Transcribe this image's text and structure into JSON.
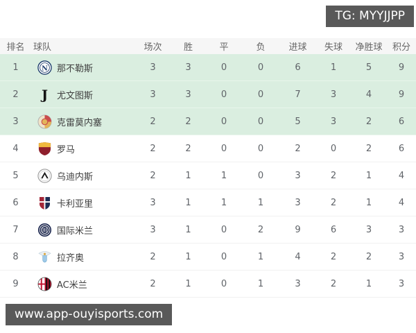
{
  "badges": {
    "tg": "TG: MYYJJPP",
    "watermark": "www.app-ouyisports.com"
  },
  "table": {
    "columns": [
      "排名",
      "球队",
      "场次",
      "胜",
      "平",
      "负",
      "进球",
      "失球",
      "净胜球",
      "积分"
    ],
    "rows": [
      {
        "rank": "1",
        "team": "那不勒斯",
        "logo": "napoli-logo",
        "played": "3",
        "win": "3",
        "draw": "0",
        "loss": "0",
        "gf": "6",
        "ga": "1",
        "gd": "5",
        "pts": "9",
        "highlight": true
      },
      {
        "rank": "2",
        "team": "尤文图斯",
        "logo": "juventus-logo",
        "played": "3",
        "win": "3",
        "draw": "0",
        "loss": "0",
        "gf": "7",
        "ga": "3",
        "gd": "4",
        "pts": "9",
        "highlight": true
      },
      {
        "rank": "3",
        "team": "克雷莫内塞",
        "logo": "cremonese-logo",
        "played": "2",
        "win": "2",
        "draw": "0",
        "loss": "0",
        "gf": "5",
        "ga": "3",
        "gd": "2",
        "pts": "6",
        "highlight": true
      },
      {
        "rank": "4",
        "team": "罗马",
        "logo": "roma-logo",
        "played": "2",
        "win": "2",
        "draw": "0",
        "loss": "0",
        "gf": "2",
        "ga": "0",
        "gd": "2",
        "pts": "6",
        "highlight": false
      },
      {
        "rank": "5",
        "team": "乌迪内斯",
        "logo": "udinese-logo",
        "played": "2",
        "win": "1",
        "draw": "1",
        "loss": "0",
        "gf": "3",
        "ga": "2",
        "gd": "1",
        "pts": "4",
        "highlight": false
      },
      {
        "rank": "6",
        "team": "卡利亚里",
        "logo": "cagliari-logo",
        "played": "3",
        "win": "1",
        "draw": "1",
        "loss": "1",
        "gf": "3",
        "ga": "2",
        "gd": "1",
        "pts": "4",
        "highlight": false
      },
      {
        "rank": "7",
        "team": "国际米兰",
        "logo": "inter-logo",
        "played": "3",
        "win": "1",
        "draw": "0",
        "loss": "2",
        "gf": "9",
        "ga": "6",
        "gd": "3",
        "pts": "3",
        "highlight": false
      },
      {
        "rank": "8",
        "team": "拉齐奥",
        "logo": "lazio-logo",
        "played": "2",
        "win": "1",
        "draw": "0",
        "loss": "1",
        "gf": "4",
        "ga": "2",
        "gd": "2",
        "pts": "3",
        "highlight": false
      },
      {
        "rank": "9",
        "team": "AC米兰",
        "logo": "milan-logo",
        "played": "2",
        "win": "1",
        "draw": "0",
        "loss": "1",
        "gf": "3",
        "ga": "2",
        "gd": "1",
        "pts": "3",
        "highlight": false
      }
    ]
  },
  "colors": {
    "highlight_row_bg": "#daeee0",
    "badge_bg": "#595959",
    "header_bg": "#f6f6f6"
  }
}
